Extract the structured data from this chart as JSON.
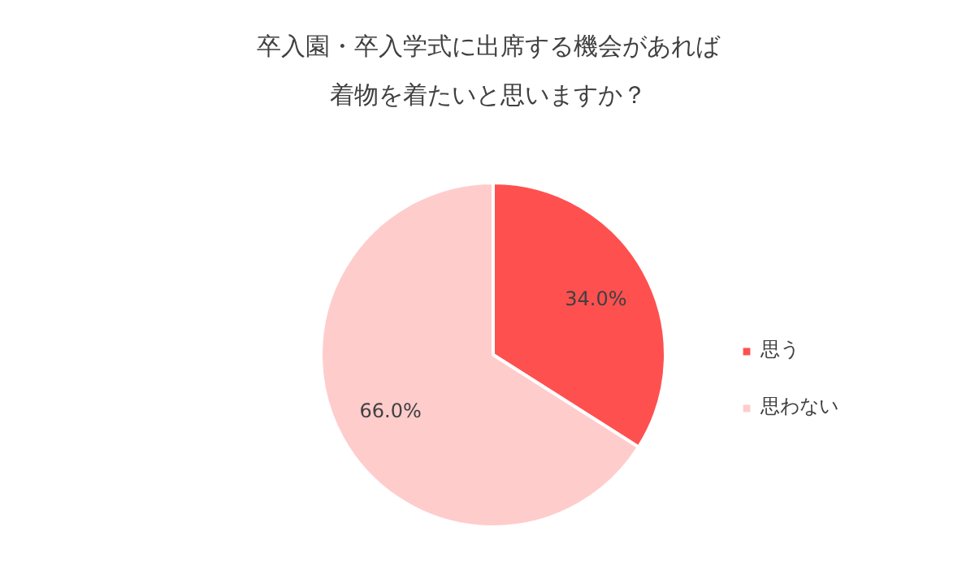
{
  "chart_data": {
    "type": "pie",
    "title": "卒入園・卒入学式に出席する機会があれば着物を着たいと思いますか？",
    "categories": [
      "思う",
      "思わない"
    ],
    "values": [
      34,
      66
    ],
    "colors": [
      "#ff5050",
      "#ffcccc"
    ],
    "value_labels": [
      "34.0%",
      "66.0%"
    ],
    "legend": "right"
  }
}
